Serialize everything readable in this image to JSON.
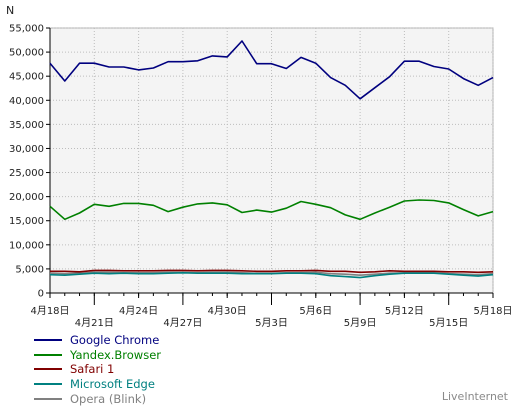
{
  "chart_data": {
    "type": "line",
    "ylabel": "N",
    "ylim": [
      0,
      55000
    ],
    "yticks": [
      0,
      5000,
      10000,
      15000,
      20000,
      25000,
      30000,
      35000,
      40000,
      45000,
      50000,
      55000
    ],
    "ytick_labels": [
      "0",
      "5,000",
      "10,000",
      "15,000",
      "20,000",
      "25,000",
      "30,000",
      "35,000",
      "40,000",
      "45,000",
      "50,000",
      "55,000"
    ],
    "x": [
      "4月18日",
      "4月19日",
      "4月20日",
      "4月21日",
      "4月22日",
      "4月23日",
      "4月24日",
      "4月25日",
      "4月26日",
      "4月27日",
      "4月28日",
      "4月29日",
      "4月30日",
      "5月1日",
      "5月2日",
      "5月3日",
      "5月4日",
      "5月5日",
      "5月6日",
      "5月7日",
      "5月8日",
      "5月9日",
      "5月10日",
      "5月11日",
      "5月12日",
      "5月13日",
      "5月14日",
      "5月15日",
      "5月16日",
      "5月17日",
      "5月18日"
    ],
    "xtick_labels": [
      {
        "index": 0,
        "label": "4月18日",
        "row": 0
      },
      {
        "index": 3,
        "label": "4月21日",
        "row": 1
      },
      {
        "index": 6,
        "label": "4月24日",
        "row": 0
      },
      {
        "index": 9,
        "label": "4月27日",
        "row": 1
      },
      {
        "index": 12,
        "label": "4月30日",
        "row": 0
      },
      {
        "index": 15,
        "label": "5月3日",
        "row": 1
      },
      {
        "index": 18,
        "label": "5月6日",
        "row": 0
      },
      {
        "index": 21,
        "label": "5月9日",
        "row": 1
      },
      {
        "index": 24,
        "label": "5月12日",
        "row": 0
      },
      {
        "index": 27,
        "label": "5月15日",
        "row": 1
      },
      {
        "index": 30,
        "label": "5月18日",
        "row": 0
      }
    ],
    "grid": true,
    "legend_position": "bottom-left",
    "series": [
      {
        "name": "Google Chrome",
        "color": "#00007f",
        "values": [
          47700,
          44000,
          47700,
          47700,
          46900,
          46900,
          46300,
          46700,
          48000,
          48000,
          48200,
          49200,
          49000,
          52300,
          47600,
          47600,
          46600,
          48900,
          47700,
          44700,
          43100,
          40300,
          42600,
          44900,
          48100,
          48100,
          47000,
          46500,
          44500,
          43100,
          44700
        ]
      },
      {
        "name": "Yandex.Browser",
        "color": "#008000",
        "values": [
          18000,
          15300,
          16600,
          18400,
          18000,
          18600,
          18600,
          18200,
          16900,
          17800,
          18500,
          18700,
          18300,
          16700,
          17200,
          16800,
          17600,
          19000,
          18400,
          17700,
          16200,
          15300,
          16600,
          17800,
          19100,
          19300,
          19200,
          18700,
          17300,
          16000,
          16900
        ]
      },
      {
        "name": "Safari 1",
        "color": "#800000",
        "values": [
          4500,
          4500,
          4400,
          4700,
          4700,
          4600,
          4600,
          4600,
          4700,
          4700,
          4600,
          4700,
          4700,
          4600,
          4500,
          4500,
          4600,
          4600,
          4700,
          4500,
          4500,
          4300,
          4400,
          4600,
          4500,
          4500,
          4500,
          4400,
          4400,
          4300,
          4400
        ]
      },
      {
        "name": "Microsoft Edge",
        "color": "#008080",
        "values": [
          3800,
          3700,
          3900,
          4100,
          4000,
          4100,
          4000,
          4000,
          4100,
          4200,
          4100,
          4100,
          4100,
          4000,
          4000,
          4000,
          4100,
          4100,
          4000,
          3600,
          3400,
          3200,
          3600,
          3900,
          4100,
          4100,
          4100,
          3900,
          3700,
          3500,
          3800
        ]
      },
      {
        "name": "Opera (Blink)",
        "color": "#808080",
        "values": [
          4100,
          4000,
          4100,
          4300,
          4300,
          4200,
          4200,
          4200,
          4300,
          4300,
          4200,
          4300,
          4300,
          4200,
          4100,
          4100,
          4200,
          4200,
          4300,
          4000,
          3900,
          3700,
          3900,
          4100,
          4200,
          4200,
          4200,
          4000,
          3900,
          3800,
          4000
        ]
      }
    ]
  },
  "legend": {
    "items": [
      {
        "label": "Google Chrome",
        "color": "#00007f"
      },
      {
        "label": "Yandex.Browser",
        "color": "#008000"
      },
      {
        "label": "Safari 1",
        "color": "#800000"
      },
      {
        "label": "Microsoft Edge",
        "color": "#008080"
      },
      {
        "label": "Opera (Blink)",
        "color": "#808080"
      }
    ]
  },
  "branding": {
    "text": "LiveInternet"
  }
}
